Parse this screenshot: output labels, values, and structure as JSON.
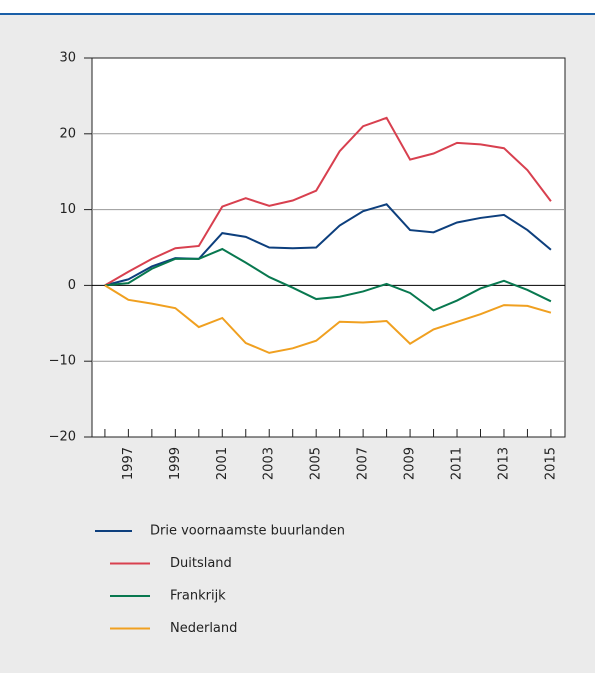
{
  "chart_data": {
    "type": "line",
    "x": [
      1996,
      1997,
      1998,
      1999,
      2000,
      2001,
      2002,
      2003,
      2004,
      2005,
      2006,
      2007,
      2008,
      2009,
      2010,
      2011,
      2012,
      2013,
      2014,
      2015
    ],
    "xlim": [
      1995.45,
      2015.6
    ],
    "xticks": [
      1997,
      1999,
      2001,
      2003,
      2005,
      2007,
      2009,
      2011,
      2013,
      2015
    ],
    "xminor_ticks": [
      1996,
      1998,
      2000,
      2002,
      2004,
      2006,
      2008,
      2010,
      2012,
      2014
    ],
    "ylim": [
      -20,
      30
    ],
    "yticks": [
      {
        "value": -20,
        "label": "−20"
      },
      {
        "value": -10,
        "label": "−10"
      },
      0,
      10,
      20,
      30
    ],
    "grid": true,
    "series": [
      {
        "name": "Drie voornaamste buurlanden",
        "color": "#0d3f7d",
        "values": [
          0,
          0.8,
          2.5,
          3.6,
          3.5,
          6.9,
          6.4,
          5.0,
          4.9,
          5.0,
          7.9,
          9.8,
          10.7,
          7.3,
          7.0,
          8.3,
          8.9,
          9.3,
          7.3,
          4.7
        ]
      },
      {
        "name": "Duitsland",
        "color": "#d8404f",
        "values": [
          0,
          1.8,
          3.5,
          4.9,
          5.2,
          10.4,
          11.5,
          10.5,
          11.2,
          12.5,
          17.7,
          21.0,
          22.1,
          16.6,
          17.4,
          18.8,
          18.6,
          18.1,
          15.2,
          11.1
        ]
      },
      {
        "name": "Frankrijk",
        "color": "#08784f",
        "values": [
          0,
          0.3,
          2.2,
          3.5,
          3.5,
          4.8,
          3.0,
          1.1,
          -0.3,
          -1.8,
          -1.5,
          -0.8,
          0.2,
          -1.0,
          -3.3,
          -2.0,
          -0.4,
          0.6,
          -0.6,
          -2.1
        ]
      },
      {
        "name": "Nederland",
        "color": "#f0a020",
        "values": [
          0,
          -1.9,
          -2.4,
          -3.0,
          -5.5,
          -4.3,
          -7.6,
          -8.9,
          -8.3,
          -7.3,
          -4.8,
          -4.9,
          -4.7,
          -7.7,
          -5.8,
          -4.8,
          -3.8,
          -2.6,
          -2.7,
          -3.6
        ]
      }
    ]
  }
}
